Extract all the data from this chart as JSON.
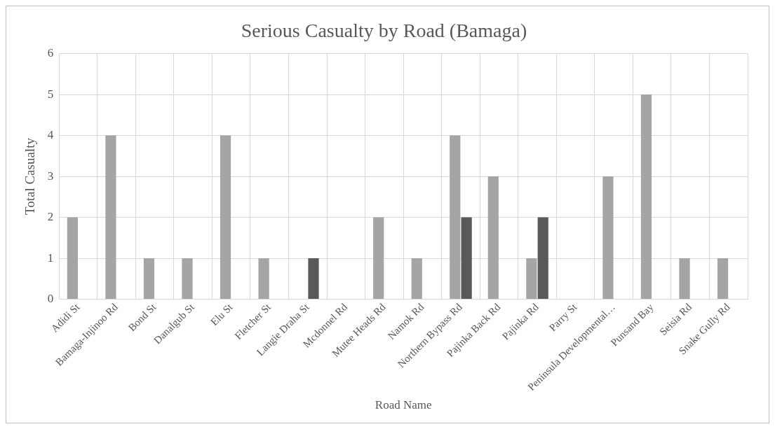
{
  "chart_data": {
    "type": "bar",
    "title": "Serious Casualty by Road (Bamaga)",
    "xlabel": "Road Name",
    "ylabel": "Total Casualty",
    "categories": [
      "Adidi St",
      "Bamaga-Injinoo Rd",
      "Bond St",
      "Danalgub St",
      "Elu St",
      "Fletcher St",
      "Langie Draha St",
      "Mcdonnel Rd",
      "Mutee Heads Rd",
      "Namok Rd",
      "Northern Bypass Rd",
      "Pajinka Back Rd",
      "Pajinka Rd",
      "Parry St",
      "Peninsula Developmental…",
      "Punsand Bay",
      "Seisia Rd",
      "Snake Gully Rd"
    ],
    "series": [
      {
        "color": "#a5a5a5",
        "values": [
          2,
          4,
          1,
          1,
          4,
          1,
          0,
          0,
          2,
          1,
          4,
          3,
          1,
          0,
          3,
          5,
          1,
          1
        ]
      },
      {
        "color": "#595959",
        "values": [
          0,
          0,
          0,
          0,
          0,
          0,
          1,
          0,
          0,
          0,
          2,
          0,
          2,
          0,
          0,
          0,
          0,
          0
        ]
      }
    ],
    "ylim": [
      0,
      6
    ],
    "yticks": [
      0,
      1,
      2,
      3,
      4,
      5,
      6
    ],
    "grid": true,
    "legend": false
  }
}
